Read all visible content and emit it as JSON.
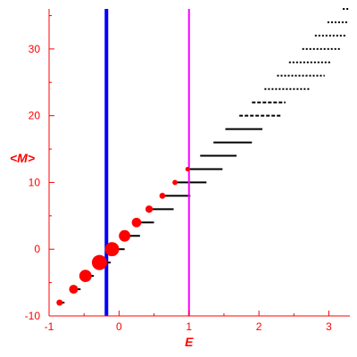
{
  "chart_data": {
    "type": "scatter",
    "title": "",
    "xlabel": "E",
    "ylabel": "<M>",
    "xlim": [
      -1,
      3.3
    ],
    "ylim": [
      -10,
      36
    ],
    "x_ticks": [
      "-1",
      "0",
      "1",
      "2",
      "3"
    ],
    "y_ticks": [
      "-10",
      "0",
      "10",
      "20",
      "30"
    ],
    "grid": false,
    "colors": {
      "axes": "#ff0000",
      "markers": "#ff0000",
      "segments": "#000000",
      "vline_blue": "#0000ff",
      "vline_magenta": "#ff00ff"
    },
    "vertical_lines": [
      {
        "x": -0.18,
        "color": "#0000ff"
      },
      {
        "x": 1.0,
        "color": "#ff00ff"
      }
    ],
    "markers": [
      {
        "x": -0.85,
        "y": -8,
        "weight": 0.08
      },
      {
        "x": -0.65,
        "y": -6,
        "weight": 0.25
      },
      {
        "x": -0.48,
        "y": -4,
        "weight": 0.6
      },
      {
        "x": -0.28,
        "y": -2,
        "weight": 1.0
      },
      {
        "x": -0.1,
        "y": 0,
        "weight": 0.85
      },
      {
        "x": 0.08,
        "y": 2,
        "weight": 0.5
      },
      {
        "x": 0.25,
        "y": 4,
        "weight": 0.3
      },
      {
        "x": 0.43,
        "y": 6,
        "weight": 0.14
      },
      {
        "x": 0.62,
        "y": 8,
        "weight": 0.07
      },
      {
        "x": 0.8,
        "y": 10,
        "weight": 0.04
      },
      {
        "x": 0.98,
        "y": 12,
        "weight": 0.02
      }
    ],
    "segments": [
      {
        "y": -8,
        "x0": -0.85,
        "x1": -0.78,
        "style": "solid"
      },
      {
        "y": -6,
        "x0": -0.65,
        "x1": -0.55,
        "style": "solid"
      },
      {
        "y": -4,
        "x0": -0.48,
        "x1": -0.36,
        "style": "solid"
      },
      {
        "y": -2,
        "x0": -0.28,
        "x1": -0.12,
        "style": "solid"
      },
      {
        "y": 0,
        "x0": -0.1,
        "x1": 0.08,
        "style": "solid"
      },
      {
        "y": 2,
        "x0": 0.08,
        "x1": 0.3,
        "style": "solid"
      },
      {
        "y": 4,
        "x0": 0.25,
        "x1": 0.5,
        "style": "solid"
      },
      {
        "y": 6,
        "x0": 0.43,
        "x1": 0.78,
        "style": "solid"
      },
      {
        "y": 8,
        "x0": 0.62,
        "x1": 1.02,
        "style": "solid"
      },
      {
        "y": 10,
        "x0": 0.8,
        "x1": 1.25,
        "style": "solid"
      },
      {
        "y": 12,
        "x0": 0.98,
        "x1": 1.48,
        "style": "solid"
      },
      {
        "y": 14,
        "x0": 1.16,
        "x1": 1.68,
        "style": "solid"
      },
      {
        "y": 16,
        "x0": 1.35,
        "x1": 1.9,
        "style": "solid"
      },
      {
        "y": 18,
        "x0": 1.52,
        "x1": 2.05,
        "style": "solid"
      },
      {
        "y": 20,
        "x0": 1.72,
        "x1": 2.32,
        "style": "dashed"
      },
      {
        "y": 22,
        "x0": 1.9,
        "x1": 2.38,
        "style": "dashed"
      },
      {
        "y": 24,
        "x0": 2.08,
        "x1": 2.72,
        "style": "dotted"
      },
      {
        "y": 26,
        "x0": 2.26,
        "x1": 2.94,
        "style": "dotted"
      },
      {
        "y": 28,
        "x0": 2.43,
        "x1": 3.02,
        "style": "dotted"
      },
      {
        "y": 30,
        "x0": 2.62,
        "x1": 3.18,
        "style": "dotted"
      },
      {
        "y": 32,
        "x0": 2.8,
        "x1": 3.25,
        "style": "dotted"
      },
      {
        "y": 34,
        "x0": 2.98,
        "x1": 3.28,
        "style": "dotted"
      },
      {
        "y": 36,
        "x0": 3.2,
        "x1": 3.28,
        "style": "dotted"
      }
    ]
  }
}
